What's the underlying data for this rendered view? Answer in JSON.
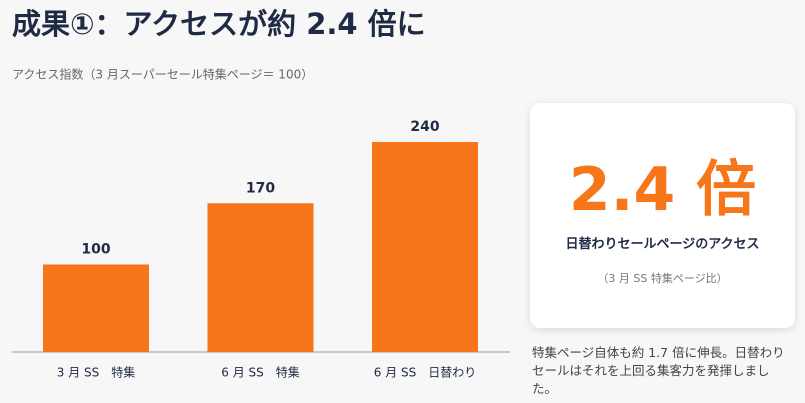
{
  "chart_data": {
    "type": "bar",
    "title": "成果①：アクセスが約 2.4 倍に",
    "subtitle": "アクセス指数（3 月スーパーセール特集ページ＝ 100）",
    "categories": [
      "3 月 SS　特集",
      "6 月 SS　特集",
      "6 月 SS　日替わり"
    ],
    "values": [
      100,
      170,
      240
    ],
    "color": "#f7761a"
  },
  "callout": {
    "headline": "2.4 倍",
    "label": "日替わりセールページのアクセス",
    "sublabel": "（3 月 SS 特集ページ比）"
  },
  "note": "特集ページ自体も約 1.7 倍に伸長。日替わりセールはそれを上回る集客力を発揮しました。"
}
